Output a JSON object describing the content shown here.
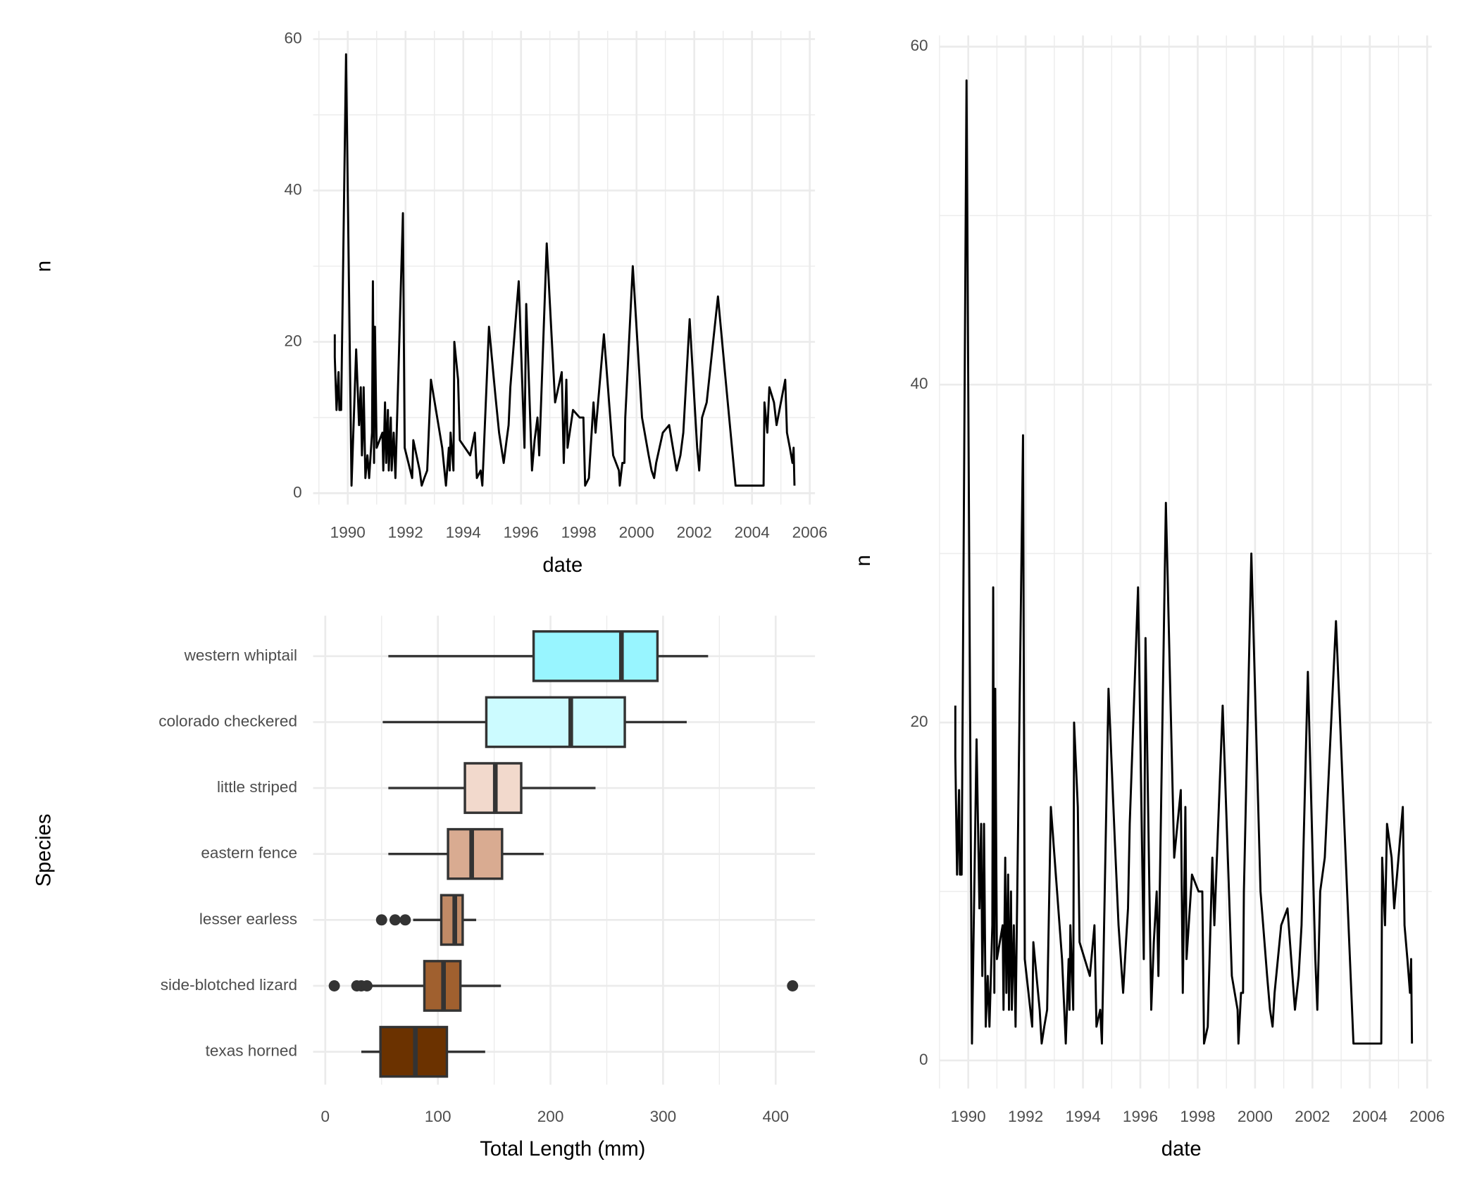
{
  "chart_data": [
    {
      "type": "line",
      "x_label": "date",
      "y_label": "n",
      "color": "#000000",
      "x": [
        1989.55,
        1989.55,
        1989.61,
        1989.68,
        1989.71,
        1989.77,
        1989.94,
        1990.13,
        1990.29,
        1990.39,
        1990.45,
        1990.49,
        1990.52,
        1990.55,
        1990.61,
        1990.68,
        1990.74,
        1990.84,
        1990.87,
        1990.91,
        1990.94,
        1991.0,
        1991.2,
        1991.23,
        1991.29,
        1991.33,
        1991.39,
        1991.42,
        1991.49,
        1991.52,
        1991.59,
        1991.65,
        1991.91,
        1991.97,
        1992.23,
        1992.27,
        1992.49,
        1992.56,
        1992.65,
        1992.75,
        1992.88,
        1993.14,
        1993.27,
        1993.4,
        1993.5,
        1993.53,
        1993.56,
        1993.66,
        1993.69,
        1993.82,
        1993.88,
        1994.24,
        1994.4,
        1994.47,
        1994.6,
        1994.66,
        1994.89,
        1995.11,
        1995.24,
        1995.4,
        1995.5,
        1995.57,
        1995.63,
        1995.92,
        1996.12,
        1996.18,
        1996.38,
        1996.47,
        1996.57,
        1996.63,
        1996.89,
        1997.18,
        1997.41,
        1997.48,
        1997.57,
        1997.61,
        1997.8,
        1998.03,
        1998.16,
        1998.22,
        1998.35,
        1998.38,
        1998.51,
        1998.58,
        1998.87,
        1999.19,
        1999.39,
        1999.42,
        1999.51,
        1999.58,
        1999.61,
        1999.87,
        2000.19,
        2000.42,
        2000.52,
        2000.61,
        2000.68,
        2000.91,
        2001.13,
        2001.39,
        2001.52,
        2001.62,
        2001.84,
        2002.1,
        2002.17,
        2002.27,
        2002.43,
        2002.82,
        2003.11,
        2003.43,
        2004.4,
        2004.43,
        2004.53,
        2004.6,
        2004.76,
        2004.85,
        2005.15,
        2005.21,
        2005.31,
        2005.4,
        2005.44,
        2005.47
      ],
      "values": [
        21,
        18,
        11,
        16,
        11,
        11,
        58,
        1,
        19,
        9,
        14,
        5,
        8,
        14,
        2,
        5,
        2,
        8,
        28,
        4,
        22,
        6,
        8,
        3,
        12,
        4,
        11,
        3,
        10,
        3,
        8,
        2,
        37,
        6,
        2,
        7,
        3,
        1,
        2,
        3,
        15,
        9,
        6,
        1,
        6,
        3,
        8,
        3,
        20,
        15,
        7,
        5,
        8,
        2,
        3,
        1,
        22,
        13,
        8,
        4,
        7,
        9,
        14,
        28,
        6,
        25,
        3,
        7,
        10,
        5,
        33,
        12,
        16,
        4,
        15,
        6,
        11,
        10,
        10,
        1,
        2,
        4,
        12,
        8,
        21,
        5,
        3,
        1,
        4,
        4,
        10,
        30,
        10,
        5,
        3,
        2,
        4,
        8,
        9,
        3,
        5,
        8,
        23,
        6,
        3,
        10,
        12,
        26,
        14,
        1,
        1,
        12,
        8,
        14,
        12,
        9,
        15,
        8,
        6,
        4,
        6,
        1
      ],
      "xlim": [
        1988.8,
        2006.18
      ],
      "xticks": [
        1990,
        1992,
        1994,
        1996,
        1998,
        2000,
        2002,
        2004,
        2006
      ],
      "xminor": [
        1989,
        1991,
        1993,
        1995,
        1997,
        1999,
        2001,
        2003,
        2005
      ],
      "ylim": [
        -1.5,
        61.1
      ],
      "yticks": [
        0,
        20,
        40,
        60
      ],
      "yminor": [
        10,
        30,
        50
      ],
      "grid": true
    },
    {
      "type": "line",
      "x_label": "date",
      "y_label": "n",
      "color": "#000000",
      "x": [
        1989.55,
        1989.55,
        1989.61,
        1989.68,
        1989.71,
        1989.77,
        1989.94,
        1990.13,
        1990.29,
        1990.39,
        1990.45,
        1990.49,
        1990.52,
        1990.55,
        1990.61,
        1990.68,
        1990.74,
        1990.84,
        1990.87,
        1990.91,
        1990.94,
        1991.0,
        1991.2,
        1991.23,
        1991.29,
        1991.33,
        1991.39,
        1991.42,
        1991.49,
        1991.52,
        1991.59,
        1991.65,
        1991.91,
        1991.97,
        1992.23,
        1992.27,
        1992.49,
        1992.56,
        1992.65,
        1992.75,
        1992.88,
        1993.14,
        1993.27,
        1993.4,
        1993.5,
        1993.53,
        1993.56,
        1993.66,
        1993.69,
        1993.82,
        1993.88,
        1994.24,
        1994.4,
        1994.47,
        1994.6,
        1994.66,
        1994.89,
        1995.11,
        1995.24,
        1995.4,
        1995.5,
        1995.57,
        1995.63,
        1995.92,
        1996.12,
        1996.18,
        1996.38,
        1996.47,
        1996.57,
        1996.63,
        1996.89,
        1997.18,
        1997.41,
        1997.48,
        1997.57,
        1997.61,
        1997.8,
        1998.03,
        1998.16,
        1998.22,
        1998.35,
        1998.38,
        1998.51,
        1998.58,
        1998.87,
        1999.19,
        1999.39,
        1999.42,
        1999.51,
        1999.58,
        1999.61,
        1999.87,
        2000.19,
        2000.42,
        2000.52,
        2000.61,
        2000.68,
        2000.91,
        2001.13,
        2001.39,
        2001.52,
        2001.62,
        2001.84,
        2002.1,
        2002.17,
        2002.27,
        2002.43,
        2002.82,
        2003.11,
        2003.43,
        2004.4,
        2004.43,
        2004.53,
        2004.6,
        2004.76,
        2004.85,
        2005.15,
        2005.21,
        2005.31,
        2005.4,
        2005.44,
        2005.47
      ],
      "values": [
        21,
        18,
        11,
        16,
        11,
        11,
        58,
        1,
        19,
        9,
        14,
        5,
        8,
        14,
        2,
        5,
        2,
        8,
        28,
        4,
        22,
        6,
        8,
        3,
        12,
        4,
        11,
        3,
        10,
        3,
        8,
        2,
        37,
        6,
        2,
        7,
        3,
        1,
        2,
        3,
        15,
        9,
        6,
        1,
        6,
        3,
        8,
        3,
        20,
        15,
        7,
        5,
        8,
        2,
        3,
        1,
        22,
        13,
        8,
        4,
        7,
        9,
        14,
        28,
        6,
        25,
        3,
        7,
        10,
        5,
        33,
        12,
        16,
        4,
        15,
        6,
        11,
        10,
        10,
        1,
        2,
        4,
        12,
        8,
        21,
        5,
        3,
        1,
        4,
        4,
        10,
        30,
        10,
        5,
        3,
        2,
        4,
        8,
        9,
        3,
        5,
        8,
        23,
        6,
        3,
        10,
        12,
        26,
        14,
        1,
        1,
        12,
        8,
        14,
        12,
        9,
        15,
        8,
        6,
        4,
        6,
        1
      ],
      "xlim": [
        1988.99,
        2006.16
      ],
      "xticks": [
        1990,
        1992,
        1994,
        1996,
        1998,
        2000,
        2002,
        2004,
        2006
      ],
      "xminor": [
        1989,
        1991,
        1993,
        1995,
        1997,
        1999,
        2001,
        2003,
        2005
      ],
      "ylim": [
        -1.66,
        60.66
      ],
      "yticks": [
        0,
        20,
        40,
        60
      ],
      "yminor": [
        10,
        30,
        50
      ],
      "grid": true
    },
    {
      "type": "boxplot",
      "orientation": "horizontal",
      "x_label": "Total Length (mm)",
      "y_label": "Species",
      "categories": [
        "western whiptail",
        "colorado checkered",
        "little striped",
        "eastern fence",
        "lesser earless",
        "side-blotched lizard",
        "texas horned"
      ],
      "lower_whisker": [
        56,
        51,
        56,
        56,
        78,
        40,
        32
      ],
      "q1": [
        185,
        143,
        124,
        109,
        103,
        88,
        49
      ],
      "median": [
        263,
        218,
        151,
        130,
        115,
        105,
        80
      ],
      "q3": [
        295,
        266,
        174,
        157,
        122,
        120,
        108
      ],
      "upper_whisker": [
        340,
        321,
        240,
        194,
        134,
        156,
        142
      ],
      "outliers": [
        [],
        [],
        [],
        [],
        [
          50,
          62,
          71
        ],
        [
          8,
          28,
          32,
          37,
          415
        ],
        []
      ],
      "colors": [
        "#98f5ff",
        "#ccfbff",
        "#f2d9cc",
        "#d9ab91",
        "#c08a66",
        "#a0602f",
        "#6b3200"
      ],
      "xlim": [
        -10.8,
        434.9
      ],
      "xticks": [
        0,
        100,
        200,
        300,
        400
      ],
      "xminor": [
        50,
        150,
        250,
        350
      ],
      "grid": true
    }
  ]
}
